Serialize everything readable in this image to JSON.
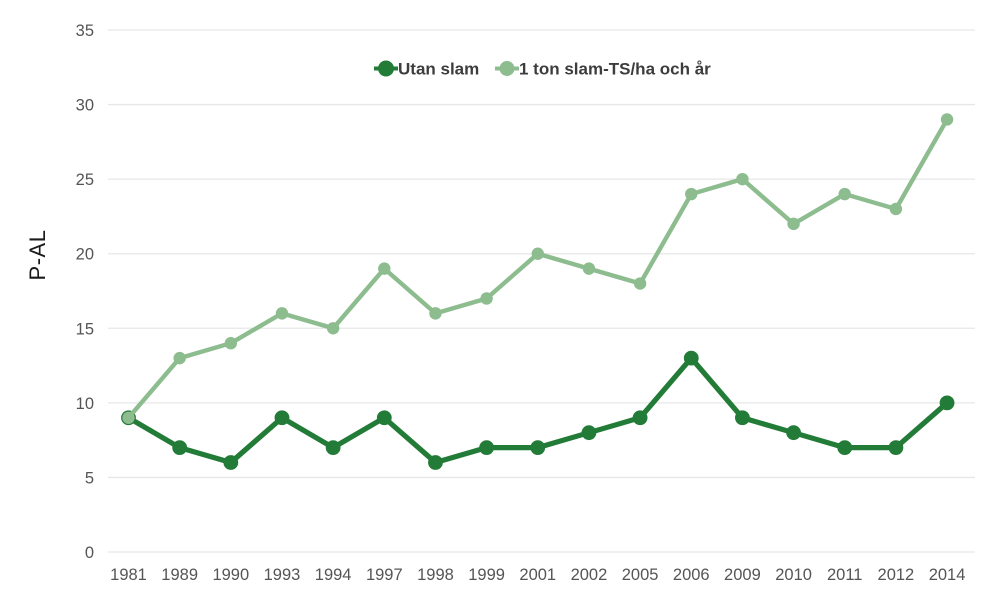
{
  "chart_data": {
    "type": "line",
    "title": "",
    "xlabel": "",
    "ylabel": "P-AL",
    "ylim": [
      0,
      35
    ],
    "yticks": [
      0,
      5,
      10,
      15,
      20,
      25,
      30,
      35
    ],
    "grid": "horizontal-only",
    "legend_position": "top-center",
    "categories": [
      "1981",
      "1989",
      "1990",
      "1993",
      "1994",
      "1997",
      "1998",
      "1999",
      "2001",
      "2002",
      "2005",
      "2006",
      "2009",
      "2010",
      "2011",
      "2012",
      "2014"
    ],
    "series": [
      {
        "name": "Utan slam",
        "color": "#237b38",
        "values": [
          9,
          7,
          6,
          9,
          7,
          9,
          6,
          7,
          7,
          8,
          9,
          13,
          9,
          8,
          7,
          7,
          10
        ]
      },
      {
        "name": "1 ton slam-TS/ha och år",
        "color": "#8dbc8f",
        "values": [
          9,
          13,
          14,
          16,
          15,
          19,
          16,
          17,
          20,
          19,
          18,
          24,
          25,
          22,
          24,
          23,
          29
        ]
      }
    ]
  },
  "colors": {
    "background": "#ffffff",
    "gridline": "#e7e7e7",
    "tick_label": "#555555",
    "axis_title": "#1a1a1a",
    "legend_text": "#3d3d3d"
  }
}
